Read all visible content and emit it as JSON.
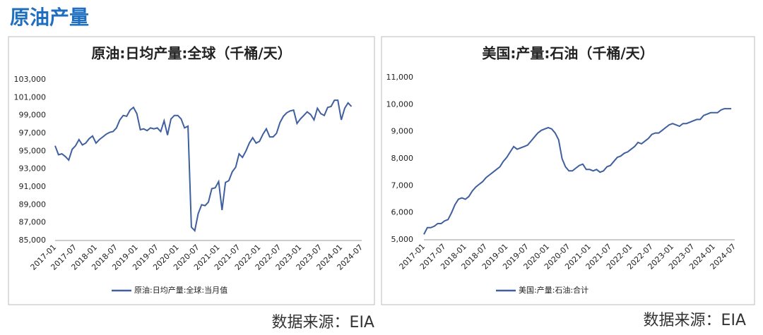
{
  "header": {
    "title": "原油产量"
  },
  "chart_data": [
    {
      "type": "line",
      "title": "原油:日均产量:全球（千桶/天）",
      "source": "数据来源：EIA",
      "categories": [
        "2017-01",
        null,
        null,
        null,
        null,
        null,
        "2017-07",
        null,
        null,
        null,
        null,
        null,
        "2018-01",
        null,
        null,
        null,
        null,
        null,
        "2018-07",
        null,
        null,
        null,
        null,
        null,
        "2019-01",
        null,
        null,
        null,
        null,
        null,
        "2019-07",
        null,
        null,
        null,
        null,
        null,
        "2020-01",
        null,
        null,
        null,
        null,
        null,
        "2020-07",
        null,
        null,
        null,
        null,
        null,
        "2021-01",
        null,
        null,
        null,
        null,
        null,
        "2021-07",
        null,
        null,
        null,
        null,
        null,
        "2022-01",
        null,
        null,
        null,
        null,
        null,
        "2022-07",
        null,
        null,
        null,
        null,
        null,
        "2023-01",
        null,
        null,
        null,
        null,
        null,
        "2023-07",
        null,
        null,
        null,
        null,
        null,
        "2024-01",
        null,
        null,
        null,
        null,
        null,
        "2024-07"
      ],
      "series": [
        {
          "name": "原油:日均产量:全球:当月值",
          "color": "#3f5f9f",
          "values": [
            95600,
            94600,
            94700,
            94400,
            94000,
            95200,
            95600,
            96300,
            95700,
            95900,
            96400,
            96700,
            95900,
            96300,
            96600,
            96900,
            97100,
            97200,
            97600,
            98500,
            99000,
            98900,
            99600,
            99900,
            99200,
            97400,
            97500,
            97300,
            97600,
            97500,
            97600,
            97200,
            98400,
            96800,
            98600,
            99000,
            99000,
            98600,
            97600,
            97800,
            86500,
            86100,
            88000,
            89000,
            88900,
            89300,
            90800,
            90900,
            91600,
            88400,
            91500,
            91700,
            92700,
            93200,
            94700,
            94300,
            95000,
            95900,
            96500,
            95900,
            96100,
            96900,
            97500,
            96600,
            96600,
            97000,
            98200,
            98900,
            99300,
            99500,
            99600,
            98100,
            98600,
            99000,
            99400,
            99100,
            98500,
            99800,
            99200,
            99000,
            99900,
            100000,
            100700,
            100700,
            98500,
            99800,
            100400,
            100000,
            null,
            null,
            null
          ]
        }
      ],
      "ylim": [
        85000,
        103000
      ],
      "yticks": [
        {
          "value": 85000,
          "label": "85,000"
        },
        {
          "value": 87000,
          "label": "87,000"
        },
        {
          "value": 89000,
          "label": "89,000"
        },
        {
          "value": 91000,
          "label": "91,000"
        },
        {
          "value": 93000,
          "label": "93,000"
        },
        {
          "value": 95000,
          "label": "95,000"
        },
        {
          "value": 97000,
          "label": "97,000"
        },
        {
          "value": 99000,
          "label": "99,000"
        },
        {
          "value": 101000,
          "label": "101,000"
        },
        {
          "value": 103000,
          "label": "103,000"
        }
      ]
    },
    {
      "type": "line",
      "title": "美国:产量:石油（千桶/天）",
      "source": "数据来源：EIA",
      "categories": [
        "2017-01",
        null,
        null,
        null,
        null,
        null,
        "2017-07",
        null,
        null,
        null,
        null,
        null,
        "2018-01",
        null,
        null,
        null,
        null,
        null,
        "2018-07",
        null,
        null,
        null,
        null,
        null,
        "2019-01",
        null,
        null,
        null,
        null,
        null,
        "2019-07",
        null,
        null,
        null,
        null,
        null,
        "2020-01",
        null,
        null,
        null,
        null,
        null,
        "2020-07",
        null,
        null,
        null,
        null,
        null,
        "2021-01",
        null,
        null,
        null,
        null,
        null,
        "2021-07",
        null,
        null,
        null,
        null,
        null,
        "2022-01",
        null,
        null,
        null,
        null,
        null,
        "2022-07",
        null,
        null,
        null,
        null,
        null,
        "2023-01",
        null,
        null,
        null,
        null,
        null,
        "2023-07",
        null,
        null,
        null,
        null,
        null,
        "2024-01",
        null,
        null,
        null,
        null,
        null,
        "2024-07"
      ],
      "series": [
        {
          "name": "美国:产量:石油:合计",
          "color": "#3f5f9f",
          "values": [
            5200,
            5450,
            5450,
            5500,
            5600,
            5600,
            5700,
            5750,
            6000,
            6300,
            6500,
            6550,
            6500,
            6600,
            6800,
            6950,
            7050,
            7150,
            7300,
            7400,
            7500,
            7600,
            7700,
            7900,
            8050,
            8250,
            8450,
            8350,
            8400,
            8450,
            8500,
            8650,
            8800,
            8950,
            9050,
            9100,
            9150,
            9100,
            8950,
            8700,
            8000,
            7700,
            7550,
            7550,
            7650,
            7750,
            7800,
            7600,
            7600,
            7550,
            7600,
            7500,
            7550,
            7700,
            7750,
            7900,
            8050,
            8100,
            8200,
            8250,
            8350,
            8450,
            8600,
            8550,
            8650,
            8750,
            8900,
            8950,
            8950,
            9050,
            9150,
            9250,
            9300,
            9250,
            9200,
            9300,
            9300,
            9350,
            9400,
            9450,
            9450,
            9600,
            9650,
            9700,
            9700,
            9700,
            9800,
            9850,
            9850,
            9850,
            null
          ]
        }
      ],
      "ylim": [
        5000,
        11000
      ],
      "yticks": [
        {
          "value": 5000,
          "label": "5,000"
        },
        {
          "value": 6000,
          "label": "6,000"
        },
        {
          "value": 7000,
          "label": "7,000"
        },
        {
          "value": 8000,
          "label": "8,000"
        },
        {
          "value": 9000,
          "label": "9,000"
        },
        {
          "value": 10000,
          "label": "10,000"
        },
        {
          "value": 11000,
          "label": "11,000"
        }
      ]
    }
  ]
}
